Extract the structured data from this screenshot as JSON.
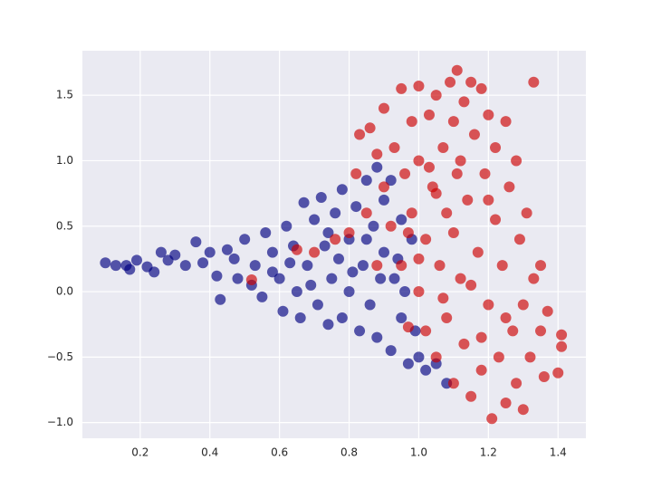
{
  "chart_data": {
    "type": "scatter",
    "xlim": [
      0.034,
      1.48
    ],
    "ylim": [
      -1.12,
      1.84
    ],
    "xticks": [
      0.2,
      0.4,
      0.6,
      0.8,
      {
        "value": 1,
        "label": "1.0"
      },
      1.2,
      1.4
    ],
    "yticks": [
      {
        "value": -1,
        "label": "−1.0"
      },
      {
        "value": -0.5,
        "label": "−0.5"
      },
      {
        "value": 0,
        "label": "0.0"
      },
      0.5,
      {
        "value": 1,
        "label": "1.0"
      },
      1.5
    ],
    "grid": true,
    "series": [
      {
        "color": "#00007f",
        "x": [
          0.1,
          0.13,
          0.16,
          0.17,
          0.19,
          0.22,
          0.24,
          0.26,
          0.28,
          0.3,
          0.33,
          0.36,
          0.38,
          0.4,
          0.42,
          0.43,
          0.45,
          0.47,
          0.48,
          0.5,
          0.52,
          0.53,
          0.55,
          0.56,
          0.58,
          0.6,
          0.61,
          0.62,
          0.64,
          0.65,
          0.66,
          0.67,
          0.68,
          0.7,
          0.71,
          0.72,
          0.73,
          0.74,
          0.75,
          0.76,
          0.78,
          0.78,
          0.8,
          0.8,
          0.82,
          0.83,
          0.84,
          0.85,
          0.86,
          0.87,
          0.88,
          0.9,
          0.9,
          0.92,
          0.93,
          0.95,
          0.95,
          0.97,
          0.98,
          1.0,
          1.02,
          1.05,
          1.08,
          0.88,
          0.92,
          0.58,
          0.63,
          0.69,
          0.74,
          0.77,
          0.81,
          0.85,
          0.89,
          0.94,
          0.96,
          0.99
        ],
        "y": [
          0.22,
          0.2,
          0.2,
          0.17,
          0.24,
          0.19,
          0.15,
          0.3,
          0.24,
          0.28,
          0.2,
          0.38,
          0.22,
          0.3,
          0.12,
          -0.06,
          0.32,
          0.25,
          0.1,
          0.4,
          0.05,
          0.2,
          -0.04,
          0.45,
          0.3,
          0.1,
          -0.15,
          0.5,
          0.35,
          0.0,
          -0.2,
          0.68,
          0.2,
          0.55,
          -0.1,
          0.72,
          0.35,
          -0.25,
          0.1,
          0.6,
          0.78,
          -0.2,
          0.4,
          0.0,
          0.65,
          -0.3,
          0.2,
          0.85,
          -0.1,
          0.5,
          -0.35,
          0.3,
          0.7,
          -0.45,
          0.1,
          0.55,
          -0.2,
          -0.55,
          0.4,
          -0.5,
          -0.6,
          -0.55,
          -0.7,
          0.95,
          0.85,
          0.15,
          0.22,
          0.05,
          0.45,
          0.25,
          0.15,
          0.4,
          0.1,
          0.25,
          0.0,
          -0.3
        ]
      },
      {
        "color": "#cc0000",
        "x": [
          0.52,
          0.65,
          0.7,
          0.76,
          0.8,
          0.82,
          0.83,
          0.85,
          0.86,
          0.88,
          0.88,
          0.9,
          0.9,
          0.92,
          0.93,
          0.95,
          0.95,
          0.96,
          0.97,
          0.98,
          0.98,
          1.0,
          1.0,
          1.0,
          1.02,
          1.02,
          1.03,
          1.04,
          1.05,
          1.05,
          1.06,
          1.07,
          1.08,
          1.08,
          1.09,
          1.1,
          1.1,
          1.11,
          1.11,
          1.12,
          1.13,
          1.13,
          1.14,
          1.15,
          1.15,
          1.16,
          1.17,
          1.18,
          1.18,
          1.19,
          1.2,
          1.2,
          1.21,
          1.22,
          1.22,
          1.23,
          1.24,
          1.25,
          1.25,
          1.26,
          1.27,
          1.28,
          1.28,
          1.29,
          1.3,
          1.3,
          1.31,
          1.32,
          1.33,
          1.33,
          1.35,
          1.35,
          1.36,
          1.37,
          1.4,
          1.41,
          1.41,
          1.05,
          1.1,
          1.15,
          1.2,
          1.25,
          1.0,
          1.07,
          1.18,
          1.12,
          0.97,
          1.03
        ],
        "y": [
          0.09,
          0.32,
          0.3,
          0.4,
          0.45,
          0.9,
          1.2,
          0.6,
          1.25,
          1.05,
          0.2,
          1.4,
          0.8,
          0.5,
          1.1,
          1.55,
          0.2,
          0.9,
          -0.27,
          1.3,
          0.6,
          1.57,
          0.0,
          1.0,
          0.4,
          -0.3,
          1.35,
          0.8,
          -0.5,
          1.5,
          0.2,
          1.1,
          -0.2,
          0.6,
          1.6,
          1.3,
          -0.7,
          0.9,
          1.69,
          0.1,
          1.45,
          -0.4,
          0.7,
          1.6,
          -0.8,
          1.2,
          0.3,
          1.55,
          -0.6,
          0.9,
          -0.1,
          1.35,
          -0.97,
          0.55,
          1.1,
          -0.5,
          0.2,
          1.3,
          -0.85,
          0.8,
          -0.3,
          1.0,
          -0.7,
          0.4,
          -0.1,
          -0.9,
          0.6,
          -0.5,
          1.6,
          0.1,
          -0.3,
          0.2,
          -0.65,
          -0.15,
          -0.62,
          -0.42,
          -0.33,
          0.75,
          0.45,
          0.05,
          0.7,
          -0.2,
          0.25,
          -0.05,
          -0.35,
          1.0,
          0.45,
          0.95
        ]
      }
    ]
  }
}
